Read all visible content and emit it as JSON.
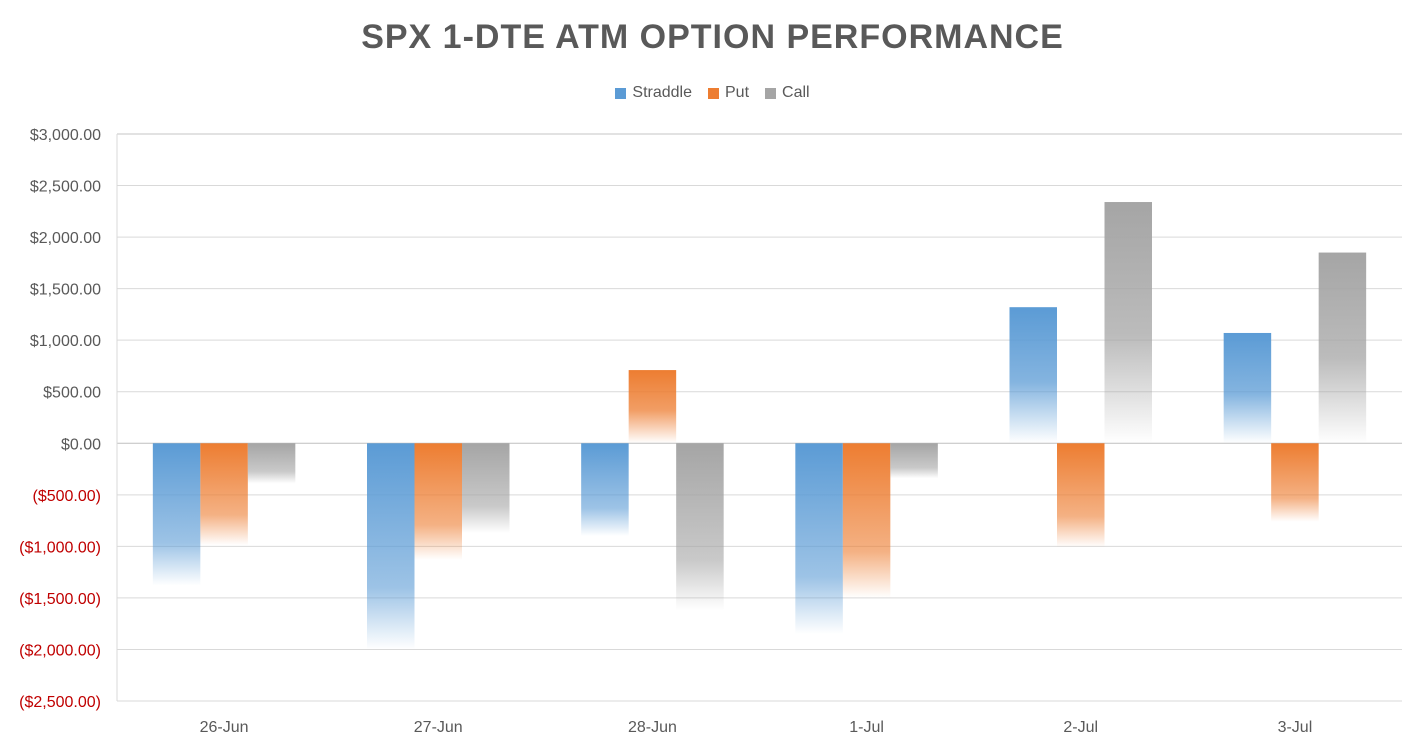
{
  "chart_data": {
    "type": "bar",
    "title": "SPX 1-DTE ATM OPTION PERFORMANCE",
    "categories": [
      "26-Jun",
      "27-Jun",
      "28-Jun",
      "1-Jul",
      "2-Jul",
      "3-Jul"
    ],
    "series": [
      {
        "name": "Straddle",
        "color": "#5b9bd5",
        "values": [
          -1380,
          -2000,
          -900,
          -1850,
          1320,
          1070
        ]
      },
      {
        "name": "Put",
        "color": "#ed7d31",
        "values": [
          -990,
          -1130,
          710,
          -1500,
          -1010,
          -760
        ]
      },
      {
        "name": "Call",
        "color": "#a5a5a5",
        "values": [
          -390,
          -870,
          -1620,
          -340,
          2340,
          1850
        ]
      }
    ],
    "ylim": [
      -2500,
      3000
    ],
    "yticks": [
      "$3,000.00",
      "$2,500.00",
      "$2,000.00",
      "$1,500.00",
      "$1,000.00",
      "$500.00",
      "$0.00",
      "($500.00)",
      "($1,000.00)",
      "($1,500.00)",
      "($2,000.00)",
      "($2,500.00)"
    ],
    "ytick_values": [
      3000,
      2500,
      2000,
      1500,
      1000,
      500,
      0,
      -500,
      -1000,
      -1500,
      -2000,
      -2500
    ],
    "negative_label_color": "#c00000",
    "label_color": "#595959",
    "grid": true,
    "legend_position": "top-center"
  }
}
